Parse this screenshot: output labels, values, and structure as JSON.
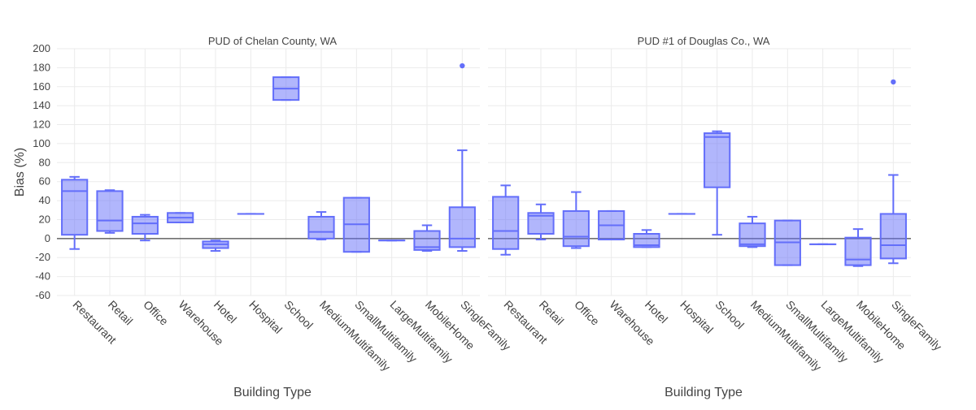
{
  "y_axis_label": "Bias (%)",
  "chart_data": [
    {
      "type": "box",
      "title": "PUD of Chelan County, WA",
      "xlabel": "Building Type",
      "ylabel": "Bias (%)",
      "ylim": [
        -60,
        200
      ],
      "yticks": [
        -60,
        -40,
        -20,
        0,
        20,
        40,
        60,
        80,
        100,
        120,
        140,
        160,
        180,
        200
      ],
      "grid": true,
      "zero_line": true,
      "box_color": "#636efa",
      "categories": [
        "Restaurant",
        "Retail",
        "Office",
        "Warehouse",
        "Hotel",
        "Hospital",
        "School",
        "MediumMultifamily",
        "SmallMultifamily",
        "LargeMultifamily",
        "MobileHome",
        "SingleFamily"
      ],
      "boxes": [
        {
          "category": "Restaurant",
          "min": -11,
          "q1": 4,
          "median": 50,
          "q3": 62,
          "max": 65
        },
        {
          "category": "Retail",
          "min": 6,
          "q1": 8,
          "median": 19,
          "q3": 50,
          "max": 51
        },
        {
          "category": "Office",
          "min": -2,
          "q1": 5,
          "median": 16,
          "q3": 23,
          "max": 25
        },
        {
          "category": "Warehouse",
          "min": 17,
          "q1": 17,
          "median": 22,
          "q3": 27,
          "max": 27
        },
        {
          "category": "Hotel",
          "min": -13,
          "q1": -10,
          "median": -6,
          "q3": -3,
          "max": -2
        },
        {
          "category": "Hospital",
          "min": 26,
          "q1": 26,
          "median": 26,
          "q3": 26,
          "max": 26
        },
        {
          "category": "School",
          "min": 146,
          "q1": 146,
          "median": 158,
          "q3": 170,
          "max": 170
        },
        {
          "category": "MediumMultifamily",
          "min": -1,
          "q1": 0,
          "median": 7,
          "q3": 23,
          "max": 28
        },
        {
          "category": "SmallMultifamily",
          "min": -14,
          "q1": -14,
          "median": 15,
          "q3": 43,
          "max": 43
        },
        {
          "category": "LargeMultifamily",
          "min": -2,
          "q1": -2,
          "median": -2,
          "q3": -2,
          "max": -2
        },
        {
          "category": "MobileHome",
          "min": -13,
          "q1": -12,
          "median": -9,
          "q3": 8,
          "max": 14
        },
        {
          "category": "SingleFamily",
          "min": -13,
          "q1": -9,
          "median": 0,
          "q3": 33,
          "max": 93,
          "outliers": [
            182
          ]
        }
      ]
    },
    {
      "type": "box",
      "title": "PUD #1 of Douglas Co., WA",
      "xlabel": "Building Type",
      "ylim": [
        -60,
        200
      ],
      "grid": true,
      "zero_line": true,
      "box_color": "#636efa",
      "categories": [
        "Restaurant",
        "Retail",
        "Office",
        "Warehouse",
        "Hotel",
        "Hospital",
        "School",
        "MediumMultifamily",
        "SmallMultifamily",
        "LargeMultifamily",
        "MobileHome",
        "SingleFamily"
      ],
      "boxes": [
        {
          "category": "Restaurant",
          "min": -17,
          "q1": -11,
          "median": 8,
          "q3": 44,
          "max": 56
        },
        {
          "category": "Retail",
          "min": -1,
          "q1": 5,
          "median": 24,
          "q3": 27,
          "max": 36
        },
        {
          "category": "Office",
          "min": -10,
          "q1": -8,
          "median": 2,
          "q3": 29,
          "max": 49
        },
        {
          "category": "Warehouse",
          "min": -1,
          "q1": -1,
          "median": 14,
          "q3": 29,
          "max": 29
        },
        {
          "category": "Hotel",
          "min": -9,
          "q1": -9,
          "median": -7,
          "q3": 5,
          "max": 9
        },
        {
          "category": "Hospital",
          "min": 26,
          "q1": 26,
          "median": 26,
          "q3": 26,
          "max": 26
        },
        {
          "category": "School",
          "min": 4,
          "q1": 54,
          "median": 107,
          "q3": 111,
          "max": 113
        },
        {
          "category": "MediumMultifamily",
          "min": -9,
          "q1": -8,
          "median": -6,
          "q3": 16,
          "max": 23
        },
        {
          "category": "SmallMultifamily",
          "min": -28,
          "q1": -28,
          "median": -4,
          "q3": 19,
          "max": 19
        },
        {
          "category": "LargeMultifamily",
          "min": -6,
          "q1": -6,
          "median": -6,
          "q3": -6,
          "max": -6
        },
        {
          "category": "MobileHome",
          "min": -29,
          "q1": -28,
          "median": -22,
          "q3": 1,
          "max": 10
        },
        {
          "category": "SingleFamily",
          "min": -26,
          "q1": -21,
          "median": -7,
          "q3": 26,
          "max": 67,
          "outliers": [
            165
          ]
        }
      ]
    }
  ]
}
